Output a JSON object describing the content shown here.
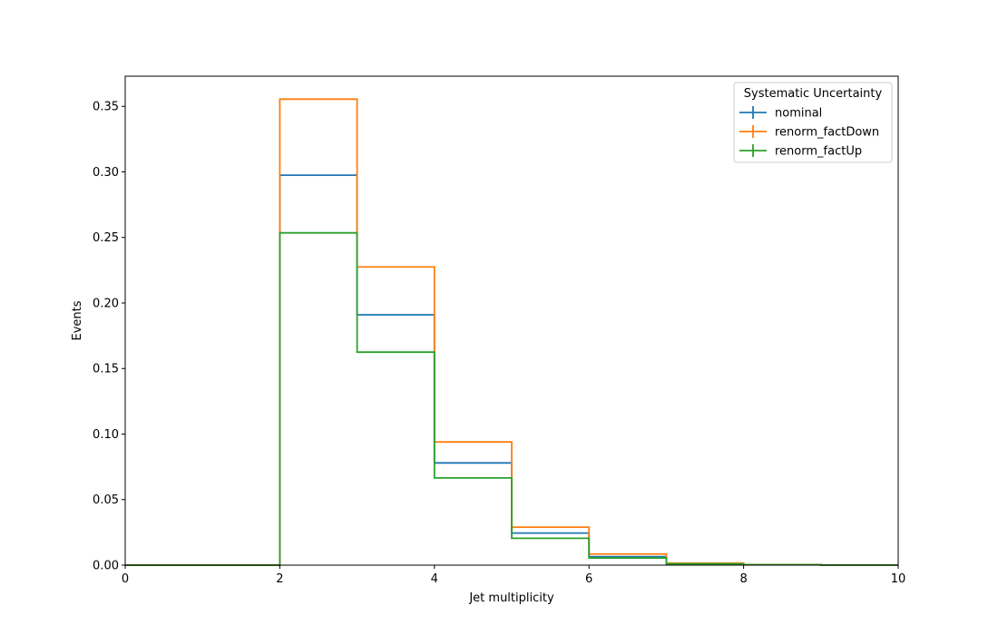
{
  "chart_data": {
    "type": "histogram-step",
    "title": "",
    "xlabel": "Jet multiplicity",
    "ylabel": "Events",
    "xlim": [
      0,
      10
    ],
    "ylim": [
      0,
      0.373
    ],
    "xticks": [
      0,
      2,
      4,
      6,
      8,
      10
    ],
    "xtick_labels": [
      "0",
      "2",
      "4",
      "6",
      "8",
      "10"
    ],
    "yticks": [
      0.0,
      0.05,
      0.1,
      0.15,
      0.2,
      0.25,
      0.3,
      0.35
    ],
    "ytick_labels": [
      "0.00",
      "0.05",
      "0.10",
      "0.15",
      "0.20",
      "0.25",
      "0.30",
      "0.35"
    ],
    "grid": false,
    "legend": {
      "title": "Systematic Uncertainty",
      "placement": "top-right"
    },
    "bin_edges": [
      0,
      1,
      2,
      3,
      4,
      5,
      6,
      7,
      8,
      9,
      10
    ],
    "series": [
      {
        "name": "nominal",
        "color": "#1f77b4",
        "values": [
          0,
          0,
          0.2975,
          0.191,
          0.078,
          0.0245,
          0.0065,
          0.0012,
          0.0003,
          0.0001
        ]
      },
      {
        "name": "renorm_factDown",
        "color": "#ff7f0e",
        "values": [
          0,
          0,
          0.3555,
          0.2275,
          0.094,
          0.029,
          0.0085,
          0.0015,
          0.0004,
          0.0001
        ]
      },
      {
        "name": "renorm_factUp",
        "color": "#2ca02c",
        "values": [
          0,
          0,
          0.2535,
          0.1625,
          0.0665,
          0.0205,
          0.0055,
          0.001,
          0.0003,
          0.0001
        ]
      }
    ]
  }
}
